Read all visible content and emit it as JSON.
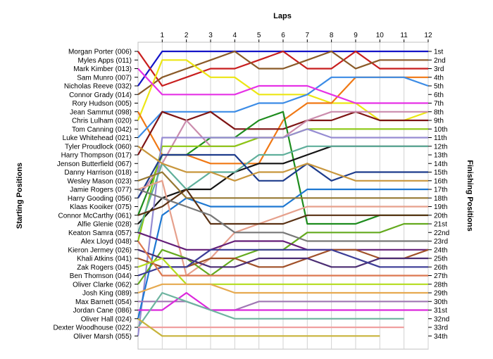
{
  "chart_data": {
    "type": "line",
    "xlabel": "Laps",
    "ylabel_left": "Starting Positions",
    "ylabel_right": "Finishing Positions",
    "x": [
      0,
      1,
      2,
      3,
      4,
      5,
      6,
      7,
      8,
      9,
      10,
      11,
      12
    ],
    "x_tick_labels": [
      "1",
      "2",
      "3",
      "4",
      "5",
      "6",
      "7",
      "8",
      "9",
      "10",
      "11",
      "12"
    ],
    "y_range": [
      1,
      34
    ],
    "grid": "vertical",
    "drivers": [
      "Morgan Porter (006)",
      "Myles Apps (011)",
      "Mark Kimber (013)",
      "Sam Munro (007)",
      "Nicholas Reeve (032)",
      "Connor Grady (014)",
      "Rory Hudson (005)",
      "Jean Sammut (098)",
      "Chris Lulham (020)",
      "Tom Canning (042)",
      "Luke Whitehead (021)",
      "Tyler Proudlock (060)",
      "Harry Thompson (017)",
      "Jenson Butterfield (067)",
      "Danny Harrison (018)",
      "Wesley Mason (023)",
      "Jamie Rogers (077)",
      "Harry Gooding (056)",
      "Klaas Kooiker (075)",
      "Connor McCarthy (061)",
      "Alfie Glenie (028)",
      "Keaton Samra (057)",
      "Alex Lloyd (048)",
      "Kieron Jermey (026)",
      "Khali Atkins (041)",
      "Zak Rogers (045)",
      "Ben Thomson (044)",
      "Oliver Clarke (062)",
      "Josh King (089)",
      "Max Barnett (054)",
      "Jordan Cane (086)",
      "Oliver Hall (024)",
      "Dexter Woodhouse (022)",
      "Oliver Marsh (055)"
    ],
    "finish_labels": [
      "1st",
      "2nd",
      "3rd",
      "4th",
      "5th",
      "6th",
      "7th",
      "8th",
      "9th",
      "10th",
      "11th",
      "12th",
      "13th",
      "14th",
      "15th",
      "16th",
      "17th",
      "18th",
      "19th",
      "20th",
      "21st",
      "22nd",
      "23rd",
      "24th",
      "25th",
      "26th",
      "27th",
      "28th",
      "29th",
      "30th",
      "31st",
      "32nd",
      "33rd",
      "34th"
    ],
    "series": [
      {
        "color": "#1414c8",
        "values": [
          5,
          1,
          1,
          1,
          1,
          1,
          1,
          1,
          1,
          1,
          1,
          1,
          1
        ]
      },
      {
        "color": "#c81e1e",
        "values": [
          1,
          5,
          4,
          3,
          3,
          2,
          1,
          3,
          3,
          1,
          3,
          3,
          3
        ]
      },
      {
        "color": "#8a5a28",
        "values": [
          6,
          4,
          3,
          2,
          1,
          3,
          3,
          2,
          1,
          3,
          2,
          2,
          2
        ]
      },
      {
        "color": "#ece614",
        "values": [
          9,
          2,
          2,
          4,
          4,
          6,
          6,
          6,
          7,
          7,
          9,
          9,
          8
        ]
      },
      {
        "color": "#f07814",
        "values": [
          8,
          13,
          13,
          14,
          14,
          14,
          9,
          7,
          7,
          4,
          4,
          4,
          4
        ]
      },
      {
        "color": "#3c8ce6",
        "values": [
          11,
          8,
          8,
          8,
          8,
          7,
          7,
          6,
          4,
          4,
          4,
          4,
          5
        ]
      },
      {
        "color": "#e632e6",
        "values": [
          3,
          6,
          6,
          6,
          6,
          5,
          5,
          5,
          6,
          7,
          7,
          7,
          7
        ]
      },
      {
        "color": "#7e1414",
        "values": [
          13,
          8,
          9,
          8,
          10,
          10,
          10,
          9,
          9,
          8,
          9,
          9,
          9
        ]
      },
      {
        "color": "#1e8c1e",
        "values": [
          20,
          13,
          13,
          11,
          11,
          9,
          8,
          21,
          21,
          21,
          20,
          20,
          20
        ]
      },
      {
        "color": "#cb8cad",
        "values": [
          18,
          14,
          9,
          12,
          12,
          11,
          11,
          9,
          8,
          8,
          8,
          8,
          8
        ]
      },
      {
        "color": "#141414",
        "values": [
          21,
          18,
          17,
          17,
          15,
          14,
          14,
          13,
          12,
          12,
          12,
          12,
          12
        ]
      },
      {
        "color": "#8cc814",
        "values": [
          23,
          12,
          12,
          12,
          12,
          11,
          11,
          10,
          10,
          10,
          10,
          10,
          10
        ]
      },
      {
        "color": "#968cd2",
        "values": [
          34,
          11,
          11,
          11,
          11,
          11,
          11,
          10,
          11,
          11,
          11,
          11,
          11
        ]
      },
      {
        "color": "#5faf9b",
        "values": [
          22,
          14,
          17,
          15,
          15,
          13,
          13,
          12,
          12,
          12,
          12,
          12,
          12
        ]
      },
      {
        "color": "#1e3c8c",
        "values": [
          18,
          13,
          13,
          13,
          13,
          16,
          16,
          14,
          16,
          15,
          15,
          15,
          15
        ]
      },
      {
        "color": "#c8963c",
        "values": [
          12,
          14,
          15,
          15,
          16,
          15,
          15,
          14,
          15,
          16,
          16,
          16,
          16
        ]
      },
      {
        "color": "#1e78d2",
        "values": [
          32,
          20,
          18,
          19,
          19,
          19,
          19,
          17,
          17,
          17,
          17,
          17,
          17
        ]
      },
      {
        "color": "#967832",
        "values": [
          16,
          15,
          18,
          18,
          18,
          18,
          18,
          18,
          18,
          18,
          18,
          18,
          18
        ]
      },
      {
        "color": "#e6a08c",
        "values": [
          17,
          16,
          27,
          25,
          22,
          21,
          20,
          19,
          19,
          19,
          19,
          19,
          19
        ]
      },
      {
        "color": "#5a3214",
        "values": [
          20,
          19,
          17,
          21,
          21,
          21,
          21,
          20,
          20,
          20,
          20,
          20,
          20
        ]
      },
      {
        "color": "#64aa1e",
        "values": [
          28,
          24,
          25,
          27,
          25,
          24,
          24,
          22,
          22,
          22,
          22,
          21,
          21
        ]
      },
      {
        "color": "#787878",
        "values": [
          17,
          18,
          19,
          20,
          22,
          22,
          22,
          23,
          23,
          23,
          23,
          23,
          23
        ]
      },
      {
        "color": "#641e78",
        "values": [
          22,
          23,
          24,
          24,
          23,
          23,
          23,
          24,
          24,
          24,
          24,
          24,
          24
        ]
      },
      {
        "color": "#a05028",
        "values": [
          25,
          26,
          26,
          25,
          25,
          26,
          26,
          25,
          24,
          24,
          25,
          25,
          24
        ]
      },
      {
        "color": "#4b2d73",
        "values": [
          24,
          25,
          25,
          26,
          26,
          25,
          25,
          25,
          26,
          26,
          25,
          25,
          25
        ]
      },
      {
        "color": "#3c3c96",
        "values": [
          27,
          26,
          26,
          24,
          24,
          24,
          24,
          24,
          24,
          25,
          26,
          26,
          26
        ]
      },
      {
        "color": "#dc7850",
        "values": [
          23,
          27,
          27,
          27,
          27,
          27,
          27,
          27,
          27,
          27,
          27,
          27,
          27
        ]
      },
      {
        "color": "#b4dc1e",
        "values": [
          26,
          25,
          28,
          28,
          28,
          28,
          28,
          28,
          28,
          28,
          28,
          28,
          28
        ]
      },
      {
        "color": "#e6aa50",
        "values": [
          29,
          28,
          28,
          28,
          29,
          29,
          29,
          29,
          29,
          29,
          29,
          29,
          29
        ]
      },
      {
        "color": "#a078b4",
        "values": [
          30,
          30,
          30,
          31,
          31,
          30,
          30,
          30,
          30,
          30,
          30,
          30,
          30
        ]
      },
      {
        "color": "#dc28dc",
        "values": [
          31,
          31,
          29,
          31,
          31,
          31,
          31,
          31,
          31,
          31,
          31,
          31,
          31
        ]
      },
      {
        "color": "#6eb4a0",
        "values": [
          33,
          29,
          30,
          31,
          32,
          32,
          32,
          32,
          32,
          32,
          32,
          32,
          null
        ]
      },
      {
        "color": "#f0a0a0",
        "values": [
          33,
          33,
          33,
          33,
          33,
          33,
          33,
          33,
          33,
          33,
          33,
          33,
          null
        ]
      },
      {
        "color": "#c8b43c",
        "values": [
          32,
          34,
          34,
          34,
          34,
          34,
          34,
          34,
          34,
          34,
          34,
          null,
          null
        ]
      }
    ]
  }
}
